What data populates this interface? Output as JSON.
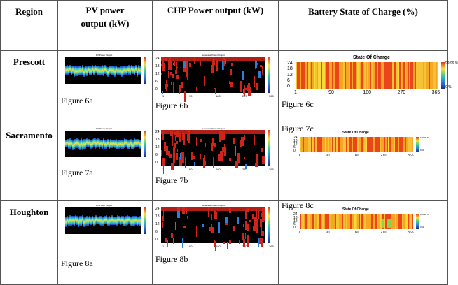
{
  "headers": {
    "region": "Region",
    "pv_line1": "PV power",
    "pv_line2": "output (kW)",
    "chp": "CHP Power output (kW)",
    "battery": "Battery State of Charge (%)"
  },
  "rows": [
    {
      "region": "Prescott",
      "pv_caption": "Figure 6a",
      "chp_caption": "Figure  6b",
      "soc_caption": "Figure 6c",
      "pv_title": "PV Power Output",
      "chp_title": "Generator Power Output",
      "soc_title": "State Of Charge",
      "soc_max": "99.99 %",
      "soc_min": "0 %"
    },
    {
      "region": "Sacramento",
      "pv_caption": "Figure 7a",
      "chp_caption": "Figure  7b",
      "soc_caption": "Figure 7c",
      "pv_title": "PV Power Output",
      "chp_title": "Generator Power Output",
      "soc_title": "State Of Charge",
      "soc_max": "100.00 %",
      "soc_min": "0 %"
    },
    {
      "region": "Houghton",
      "pv_caption": "Figure 8a",
      "chp_caption": "Figure  8b",
      "soc_caption": "Figure 8c",
      "pv_title": "PV Power Output",
      "chp_title": "Generator Power Output",
      "soc_title": "State Of Charge",
      "soc_max": "100.00 %",
      "soc_min": "0 %"
    }
  ],
  "axes": {
    "y_ticks": [
      "24",
      "18",
      "12",
      "6",
      "0"
    ],
    "x_ticks_soc": [
      "1",
      "90",
      "180",
      "270",
      "365"
    ],
    "x_ticks_chp": [
      "1",
      "90",
      "180",
      "270",
      "365"
    ]
  },
  "colors": {
    "soc_base": "#f5a623",
    "soc_red": "#e8341c",
    "soc_yellow": "#f7e03a",
    "pv_bg": "#000000",
    "chp_bg": "#000000",
    "chp_red": "#d0231a"
  }
}
